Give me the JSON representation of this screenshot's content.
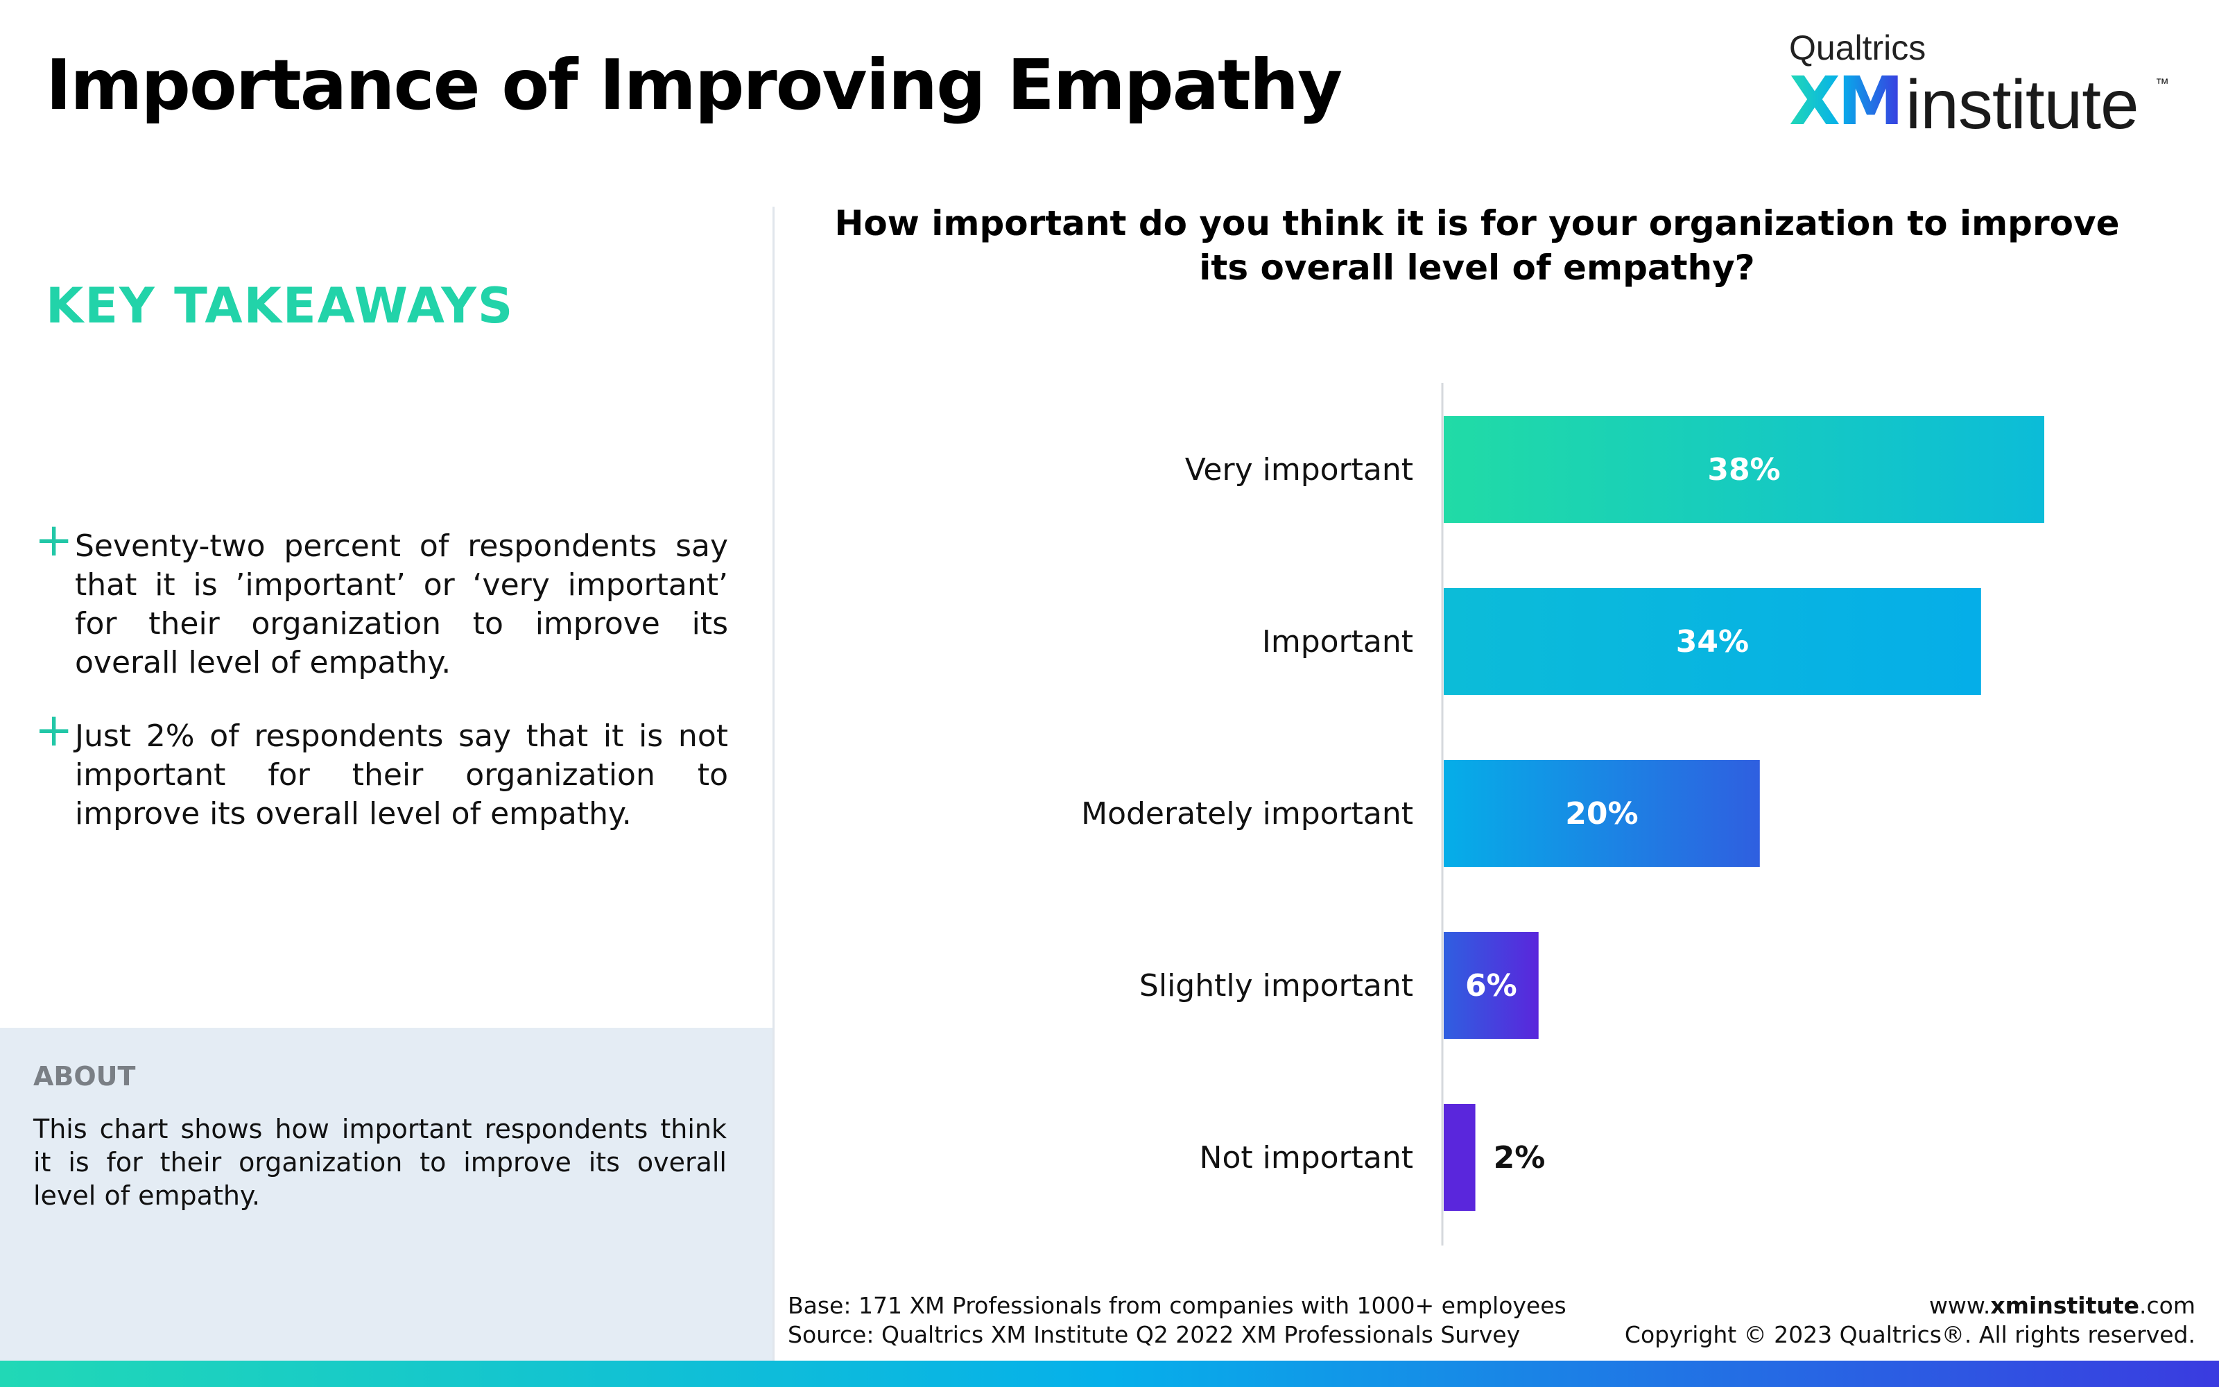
{
  "page": {
    "title": "Importance of Improving Empathy"
  },
  "logo": {
    "company": "Qualtrics",
    "brand": "XM",
    "product": "institute",
    "trademark": "™"
  },
  "key_takeaways": {
    "heading": "KEY TAKEAWAYS",
    "items": [
      {
        "text": "Seventy-two percent of respondents say that it is ’important’ or ‘very important’ for their organization to improve its overall level of empathy."
      },
      {
        "text": "Just 2% of respondents say that it is not important for their organization to improve its overall level of empathy."
      }
    ]
  },
  "about": {
    "heading": "ABOUT",
    "text": "This chart shows how important respondents think it is for their organization to improve its overall level of empathy."
  },
  "chart_data": {
    "type": "bar",
    "orientation": "horizontal",
    "title": "How important do you think it is for your organization to improve its overall level of empathy?",
    "categories": [
      "Very important",
      "Important",
      "Moderately important",
      "Slightly important",
      "Not important"
    ],
    "values": [
      38,
      34,
      20,
      6,
      2
    ],
    "value_labels": [
      "38%",
      "34%",
      "20%",
      "6%",
      "2%"
    ],
    "colors": [
      "#21dba6",
      "#0cbcd8",
      "#05aee8",
      "#2f5fe0",
      "#5a26dc"
    ],
    "xlim": [
      0,
      40
    ],
    "grid": false,
    "legend": "none"
  },
  "footer": {
    "base": "Base: 171 XM Professionals from companies with 1000+ employees",
    "source": "Source: Qualtrics XM Institute Q2 2022 XM Professionals Survey",
    "url_prefix": "www.",
    "url_bold": "xminstitute",
    "url_suffix": ".com",
    "copyright": "Copyright © 2023 Qualtrics®. All rights reserved."
  }
}
